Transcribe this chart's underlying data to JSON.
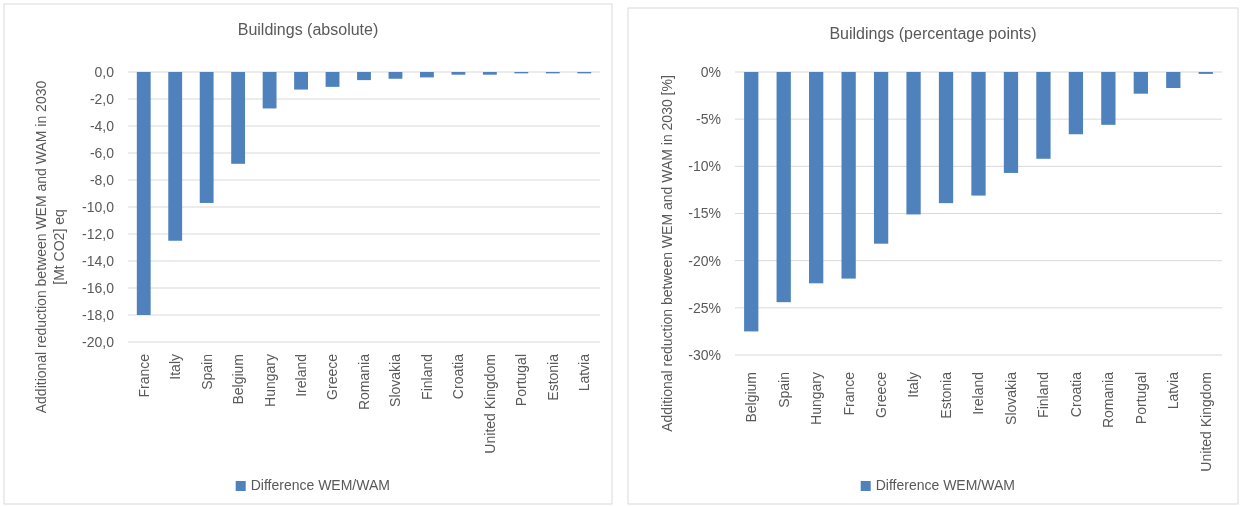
{
  "chart_data": [
    {
      "type": "bar",
      "title": "Buildings (absolute)",
      "ylabel": "Additional reduction between WEM and WAM in 2030\n[Mt CO2] eq",
      "categories": [
        "France",
        "Italy",
        "Spain",
        "Belgium",
        "Hungary",
        "Ireland",
        "Greece",
        "Romania",
        "Slovakia",
        "Finland",
        "Croatia",
        "United Kingdom",
        "Portugal",
        "Estonia",
        "Latvia"
      ],
      "series": [
        {
          "name": "Difference WEM/WAM",
          "color": "#4f81bd",
          "values": [
            -18.0,
            -12.5,
            -9.7,
            -6.8,
            -2.7,
            -1.3,
            -1.1,
            -0.6,
            -0.5,
            -0.4,
            -0.2,
            -0.2,
            -0.1,
            -0.1,
            -0.1
          ]
        }
      ],
      "ylim": [
        -20,
        0
      ],
      "yticks": [
        {
          "value": 0,
          "label": "0,0"
        },
        {
          "value": -2,
          "label": "-2,0"
        },
        {
          "value": -4,
          "label": "-4,0"
        },
        {
          "value": -6,
          "label": "-6,0"
        },
        {
          "value": -8,
          "label": "-8,0"
        },
        {
          "value": -10,
          "label": "-10,0"
        },
        {
          "value": -12,
          "label": "-12,0"
        },
        {
          "value": -14,
          "label": "-14,0"
        },
        {
          "value": -16,
          "label": "-16,0"
        },
        {
          "value": -18,
          "label": "-18,0"
        },
        {
          "value": -20,
          "label": "-20,0"
        }
      ],
      "grid": "y",
      "legend": "bottom"
    },
    {
      "type": "bar",
      "title": "Buildings (percentage points)",
      "ylabel": "Additional reduction between WEM and WAM in 2030 [%]",
      "categories": [
        "Belgium",
        "Spain",
        "Hungary",
        "France",
        "Greece",
        "Italy",
        "Estonia",
        "Ireland",
        "Slovakia",
        "Finland",
        "Croatia",
        "Romania",
        "Portugal",
        "Latvia",
        "United Kingdom"
      ],
      "series": [
        {
          "name": "Difference WEM/WAM",
          "color": "#4f81bd",
          "values": [
            -27.5,
            -24.4,
            -22.4,
            -21.9,
            -18.2,
            -15.1,
            -13.9,
            -13.1,
            -10.7,
            -9.2,
            -6.6,
            -5.6,
            -2.3,
            -1.7,
            -0.2
          ]
        }
      ],
      "ylim": [
        -30,
        0
      ],
      "yticks": [
        {
          "value": 0,
          "label": "0%"
        },
        {
          "value": -5,
          "label": "-5%"
        },
        {
          "value": -10,
          "label": "-10%"
        },
        {
          "value": -15,
          "label": "-15%"
        },
        {
          "value": -20,
          "label": "-20%"
        },
        {
          "value": -25,
          "label": "-25%"
        },
        {
          "value": -30,
          "label": "-30%"
        }
      ],
      "grid": "y",
      "legend": "bottom"
    }
  ]
}
